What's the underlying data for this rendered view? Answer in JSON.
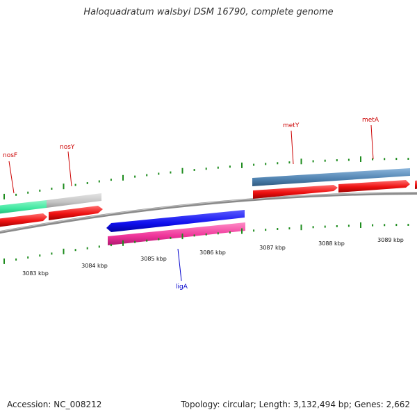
{
  "title": "Haloquadratum walsbyi DSM 16790, complete genome",
  "accession_text": "Accession: NC_008212",
  "summary_text": "Topology: circular; Length: 3,132,494 bp; Genes: 2,662",
  "colors": {
    "backbone": "#8a8a8a",
    "tick": "#1e8c1e",
    "cds": "#ee1111",
    "gene_label_red": "#cc0000",
    "gene_label_blue": "#0000cc",
    "nosF": "#3ee8a0",
    "nosY": "#c4c4c4",
    "ligA": "#1010ee",
    "ligA_cds": "#ee3399",
    "metYA": "#4f82b0"
  },
  "kbp_labels": [
    "3083 kbp",
    "3084 kbp",
    "3085 kbp",
    "3086 kbp",
    "3087 kbp",
    "3088 kbp",
    "3089 kbp"
  ],
  "gene_labels": [
    {
      "name": "nosF",
      "color": "gene_label_red"
    },
    {
      "name": "nosY",
      "color": "gene_label_red"
    },
    {
      "name": "metY",
      "color": "gene_label_red"
    },
    {
      "name": "metA",
      "color": "gene_label_red"
    },
    {
      "name": "ligA",
      "color": "gene_label_blue"
    }
  ]
}
